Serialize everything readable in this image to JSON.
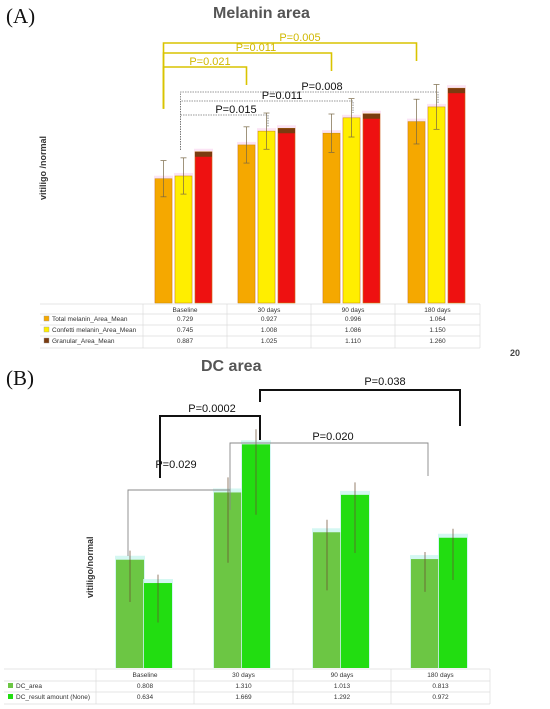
{
  "page_number": "20",
  "panels": [
    {
      "label": "(A)"
    },
    {
      "label": "(B)"
    }
  ],
  "chart_data": [
    {
      "type": "bar",
      "title": "Melanin area",
      "ylabel": "vitiligo /normal",
      "xlabel": "",
      "categories": [
        "Baseline",
        "30 days",
        "90 days",
        "180 days"
      ],
      "series": [
        {
          "name": "Total melanin_Area_Mean",
          "color": "#f5a800",
          "values": [
            0.729,
            0.927,
            0.996,
            1.064
          ]
        },
        {
          "name": "Confetti melanin_Area_Mean",
          "color": "#ffee00",
          "values": [
            0.745,
            1.008,
            1.086,
            1.15
          ]
        },
        {
          "name": "Granular_Area_Mean",
          "color": "#ee1111",
          "cap_color": "#7a3b10",
          "values": [
            0.887,
            1.025,
            1.11,
            1.26
          ]
        }
      ],
      "table": {
        "rows": [
          [
            "0.729",
            "0.927",
            "0.996",
            "1.064"
          ],
          [
            "0.745",
            "1.008",
            "1.086",
            "1.150"
          ],
          [
            "0.887",
            "1.025",
            "1.110",
            "1.260"
          ]
        ]
      },
      "significance": [
        "P=0.005",
        "P=0.011",
        "P=0.021",
        "P=0.008",
        "P=0.011",
        "P=0.015"
      ],
      "grid": false,
      "legend": "table-below"
    },
    {
      "type": "bar",
      "title": "DC area",
      "ylabel": "vitiligo/normal",
      "xlabel": "",
      "categories": [
        "Baseline",
        "30 days",
        "90 days",
        "180 days"
      ],
      "series": [
        {
          "name": "DC_area",
          "color": "#6cc644",
          "values": [
            0.808,
            1.31,
            1.013,
            0.813
          ]
        },
        {
          "name": "DC_result amount (None)",
          "color": "#22dd11",
          "values": [
            0.634,
            1.669,
            1.292,
            0.972
          ]
        }
      ],
      "table": {
        "rows": [
          [
            "0.808",
            "1.310",
            "1.013",
            "0.813"
          ],
          [
            "0.634",
            "1.669",
            "1.292",
            "0.972"
          ]
        ]
      },
      "significance": [
        "P=0.038",
        "P=0.0002",
        "P=0.020",
        "P=0.029"
      ],
      "grid": false,
      "legend": "table-below"
    }
  ]
}
